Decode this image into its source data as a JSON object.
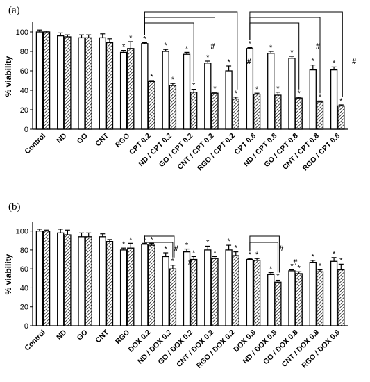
{
  "chart_data": [
    {
      "type": "bar",
      "panel_label": "(a)",
      "ylabel": "% viability",
      "ylim": [
        0,
        110
      ],
      "yticks": [
        0,
        20,
        40,
        60,
        80,
        100
      ],
      "categories": [
        "Control",
        "ND",
        "GO",
        "CNT",
        "RGO",
        "CPT 0.2",
        "ND / CPT 0.2",
        "GO / CPT 0.2",
        "CNT / CPT 0.2",
        "RGO / CPT 0.2",
        "CPT 0.8",
        "ND / CPT 0.8",
        "GO / CPT 0.8",
        "CNT / CPT 0.8",
        "RGO / CPT 0.8"
      ],
      "series": [
        {
          "fill": "open",
          "values": [
            100,
            96,
            94,
            94,
            79,
            88,
            80,
            77,
            68,
            60,
            83,
            78,
            73,
            61,
            61
          ],
          "errors": [
            2,
            3,
            3,
            4,
            2,
            1,
            2,
            2,
            2,
            5,
            1,
            2,
            2,
            5,
            3
          ]
        },
        {
          "fill": "hatched",
          "values": [
            100,
            95,
            94,
            89,
            83,
            49,
            45,
            38,
            37,
            31,
            36,
            35,
            32,
            28,
            24
          ],
          "errors": [
            1,
            2,
            3,
            4,
            7,
            1,
            2,
            3,
            1,
            2,
            1,
            3,
            1,
            1,
            1
          ]
        }
      ],
      "asterisks": {
        "open": [
          false,
          false,
          false,
          false,
          true,
          true,
          true,
          true,
          true,
          true,
          true,
          true,
          true,
          true,
          true
        ],
        "hatched": [
          false,
          false,
          false,
          false,
          true,
          true,
          true,
          true,
          true,
          true,
          true,
          true,
          true,
          true,
          true
        ]
      },
      "annotation_symbol": "*",
      "significance_symbol": "#",
      "brackets": [
        {
          "from": 5,
          "to": 7,
          "level": 3
        },
        {
          "from": 5,
          "to": 8,
          "level": 2
        },
        {
          "from": 5,
          "to": 9,
          "level": 1
        },
        {
          "from": 10,
          "to": 12,
          "level": 3
        },
        {
          "from": 10,
          "to": 13,
          "level": 2
        },
        {
          "from": 10,
          "to": 14,
          "level": 1
        }
      ],
      "hash_markers": [
        8,
        9,
        13,
        14
      ]
    },
    {
      "type": "bar",
      "panel_label": "(b)",
      "ylabel": "% viability",
      "ylim": [
        0,
        110
      ],
      "yticks": [
        0,
        20,
        40,
        60,
        80,
        100
      ],
      "categories": [
        "Control",
        "ND",
        "GO",
        "CNT",
        "RGO",
        "DOX 0.2",
        "ND / DOX 0.2",
        "GO / DOX 0.2",
        "CNT / DOX 0.2",
        "RGO / DOX 0.2",
        "DOX 0.8",
        "ND / DOX 0.8",
        "GO / DOX 0.8",
        "CNT / DOX 0.8",
        "RGO / DOX 0.8"
      ],
      "series": [
        {
          "fill": "open",
          "values": [
            100,
            98,
            94,
            94,
            80,
            86,
            73,
            78,
            80,
            80,
            70,
            54,
            58,
            67,
            68
          ],
          "errors": [
            2,
            4,
            4,
            3,
            2,
            1,
            4,
            3,
            4,
            5,
            1,
            2,
            1,
            2,
            4
          ]
        },
        {
          "fill": "hatched",
          "values": [
            100,
            96,
            94,
            89,
            82,
            85,
            60,
            70,
            71,
            74,
            69,
            46,
            55,
            57,
            59
          ],
          "errors": [
            1,
            5,
            4,
            2,
            5,
            2,
            4,
            3,
            2,
            4,
            2,
            2,
            2,
            2,
            6
          ]
        }
      ],
      "asterisks": {
        "open": [
          false,
          false,
          false,
          false,
          true,
          true,
          true,
          true,
          true,
          true,
          true,
          true,
          true,
          true,
          true
        ],
        "hatched": [
          false,
          false,
          false,
          false,
          true,
          true,
          true,
          true,
          true,
          true,
          true,
          true,
          true,
          true,
          true
        ]
      },
      "annotation_symbol": "*",
      "significance_symbol": "#",
      "brackets": [
        {
          "from": 5,
          "to": 6,
          "level": 2
        },
        {
          "from": 5,
          "to": 6,
          "level": 1
        },
        {
          "from": 10,
          "to": 11,
          "level": 2
        },
        {
          "from": 10,
          "to": 11,
          "level": 1
        }
      ],
      "hash_markers": [
        6,
        11
      ]
    }
  ]
}
